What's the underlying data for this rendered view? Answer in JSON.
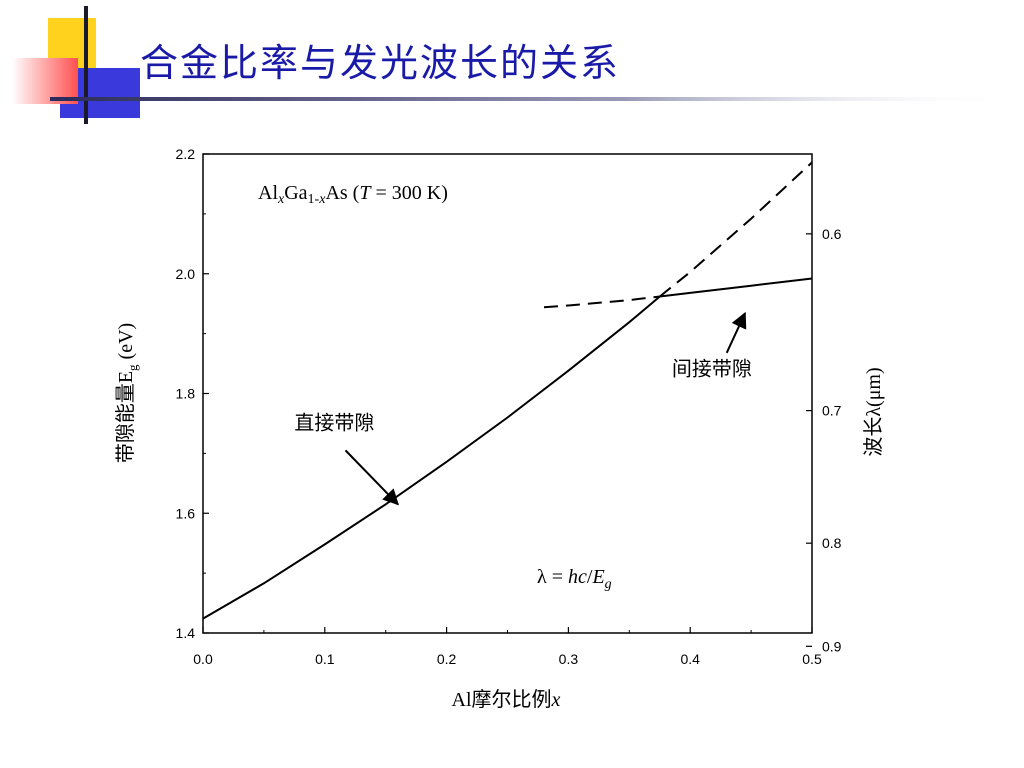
{
  "slide": {
    "title": "合金比率与发光波长的关系"
  },
  "chart_data": {
    "type": "line",
    "title": "",
    "xlabel": {
      "prefix": "Al",
      "main": "摩尔比例",
      "var": "x"
    },
    "ylabel": {
      "main": "带隙能量E",
      "sub": "g",
      "unit": " (eV)"
    },
    "y2label": {
      "main": "波长",
      "sym": "λ",
      "unit": "(μm)"
    },
    "xlim": [
      0.0,
      0.5
    ],
    "ylim": [
      1.4,
      2.2
    ],
    "x_ticks": [
      "0.0",
      "0.1",
      "0.2",
      "0.3",
      "0.4",
      "0.5"
    ],
    "y_ticks": [
      "1.4",
      "1.6",
      "1.8",
      "2.0",
      "2.2"
    ],
    "y2_ticks": [
      {
        "label": "0.6",
        "wavelength_um": 0.6
      },
      {
        "label": "0.7",
        "wavelength_um": 0.7
      },
      {
        "label": "0.8",
        "wavelength_um": 0.8
      },
      {
        "label": "0.9",
        "wavelength_um": 0.9
      }
    ],
    "material": {
      "a": "Al",
      "x": "x",
      "b": "Ga",
      "one_minus": "1-",
      "c": "As",
      "cond_open": " (",
      "T": "T",
      "cond_close": " = 300 K)"
    },
    "formula": {
      "lambda": "λ",
      "eq": " = ",
      "hc": "hc",
      "slash": "/",
      "E": "E",
      "sub": "g"
    },
    "series": [
      {
        "kind": "direct-solid",
        "style": "solid",
        "x": [
          0.0,
          0.05,
          0.1,
          0.15,
          0.2,
          0.25,
          0.3,
          0.35,
          0.375
        ],
        "y": [
          1.424,
          1.483,
          1.548,
          1.615,
          1.686,
          1.76,
          1.838,
          1.919,
          1.962
        ]
      },
      {
        "kind": "direct-dashed",
        "style": "dashed",
        "x": [
          0.375,
          0.4,
          0.45,
          0.5
        ],
        "y": [
          1.962,
          2.003,
          2.092,
          2.186
        ]
      },
      {
        "kind": "indirect-solid",
        "style": "solid",
        "x": [
          0.375,
          0.4,
          0.45,
          0.5
        ],
        "y": [
          1.962,
          1.968,
          1.98,
          1.992
        ]
      },
      {
        "kind": "indirect-dashed",
        "style": "dashed",
        "x": [
          0.28,
          0.3,
          0.35,
          0.375
        ],
        "y": [
          1.944,
          1.947,
          1.956,
          1.962
        ]
      }
    ],
    "annotations": [
      {
        "label": "直接带隙",
        "text_x": 0.075,
        "text_y": 1.74,
        "arrow_to_x": 0.16,
        "arrow_to_y": 1.615,
        "arrow_from_x": 0.117,
        "arrow_from_y": 1.705
      },
      {
        "label": "间接带隙",
        "text_x": 0.385,
        "text_y": 1.83,
        "arrow_to_x": 0.445,
        "arrow_to_y": 1.934,
        "arrow_from_x": 0.43,
        "arrow_from_y": 1.868
      }
    ]
  }
}
